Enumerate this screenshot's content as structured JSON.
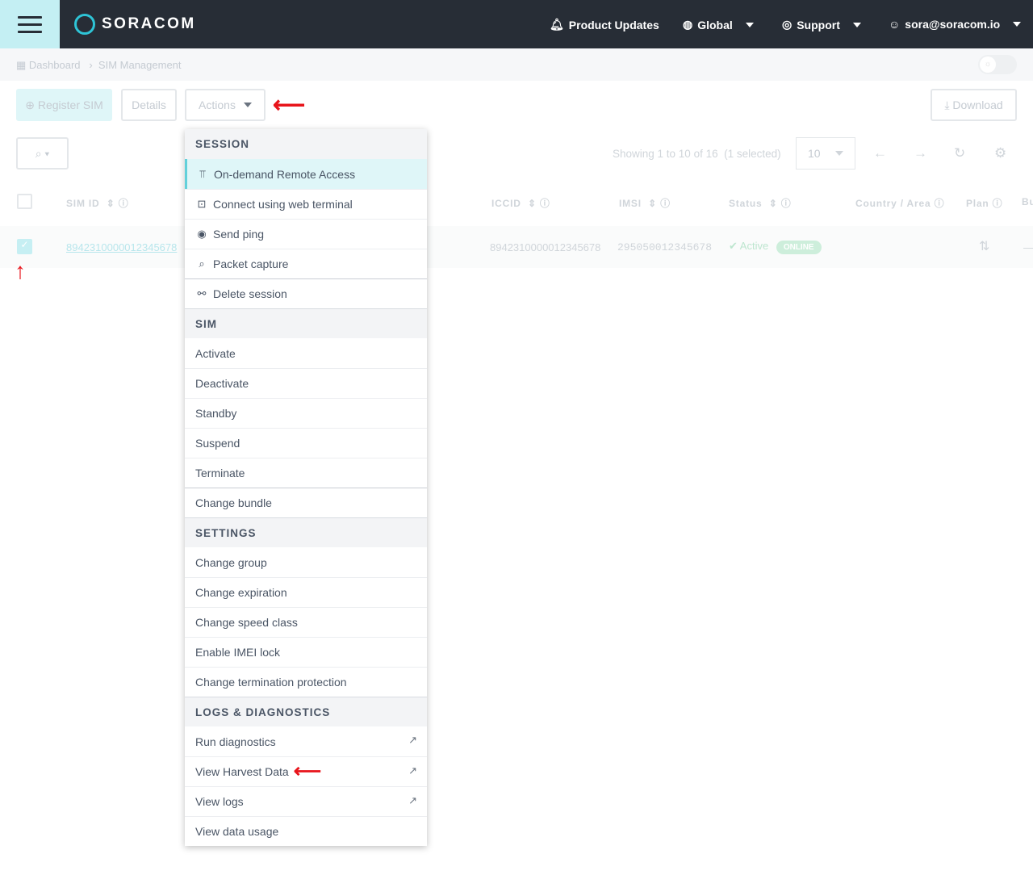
{
  "header": {
    "brand": "SORACOM",
    "product_updates": "Product Updates",
    "region": "Global",
    "support": "Support",
    "user": "sora@soracom.io"
  },
  "breadcrumb": {
    "dashboard": "Dashboard",
    "current": "SIM Management"
  },
  "toolbar": {
    "register": "Register SIM",
    "details": "Details",
    "actions": "Actions",
    "download": "Download"
  },
  "pager": {
    "showing": "Showing 1 to 10 of 16",
    "selected": "(1 selected)",
    "per_page": "10"
  },
  "columns": [
    "SIM ID",
    "ICCID",
    "IMSI",
    "Status",
    "Country / Area",
    "Plan",
    "Bu"
  ],
  "row": {
    "sim_id": "8942310000012345678",
    "iccid": "8942310000012345678",
    "imsi": "295050012345678",
    "status": "Active",
    "badge": "ONLINE",
    "dash": "—",
    "checked": true
  },
  "menu": {
    "session": {
      "title": "SESSION",
      "items": [
        "On-demand Remote Access",
        "Connect using web terminal",
        "Send ping",
        "Packet capture",
        "Delete session"
      ]
    },
    "sim": {
      "title": "SIM",
      "items": [
        "Activate",
        "Deactivate",
        "Standby",
        "Suspend",
        "Terminate",
        "Change bundle"
      ]
    },
    "settings": {
      "title": "SETTINGS",
      "items": [
        "Change group",
        "Change expiration",
        "Change speed class",
        "Enable IMEI lock",
        "Change termination protection"
      ]
    },
    "logs": {
      "title": "LOGS & DIAGNOSTICS",
      "items": [
        "Run diagnostics",
        "View Harvest Data",
        "View logs",
        "View data usage"
      ]
    }
  },
  "colors": {
    "header": "#272d36",
    "accent": "#2ec4d6",
    "annotation": "#e8141b"
  }
}
